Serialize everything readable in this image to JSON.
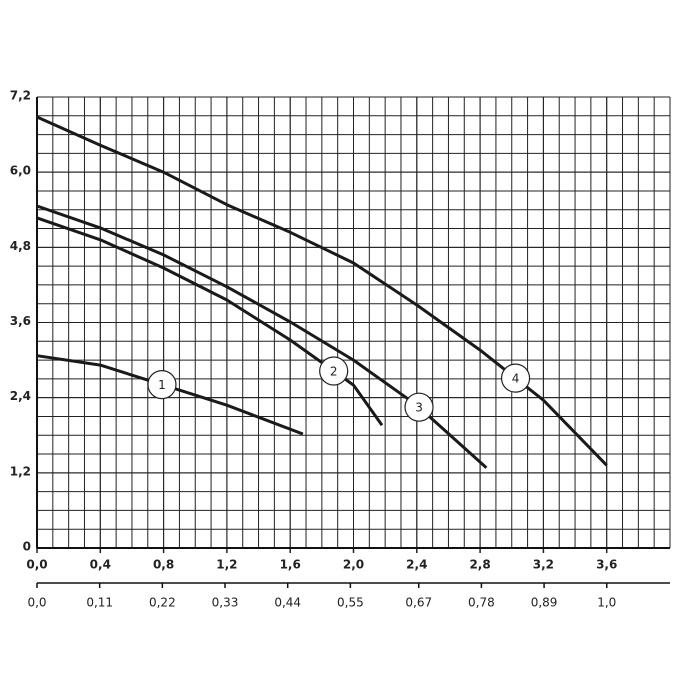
{
  "chart_data": {
    "type": "line",
    "xlim": [
      0,
      4.0
    ],
    "ylim": [
      0,
      7.2
    ],
    "x2lim": [
      0,
      1.111
    ],
    "xticks": [
      {
        "value": 0,
        "label": "0,0"
      },
      {
        "value": 0.4,
        "label": "0,4"
      },
      {
        "value": 0.8,
        "label": "0,8"
      },
      {
        "value": 1.2,
        "label": "1,2"
      },
      {
        "value": 1.6,
        "label": "1,6"
      },
      {
        "value": 2.0,
        "label": "2,0"
      },
      {
        "value": 2.4,
        "label": "2,4"
      },
      {
        "value": 2.8,
        "label": "2,8"
      },
      {
        "value": 3.2,
        "label": "3,2"
      },
      {
        "value": 3.6,
        "label": "3,6"
      }
    ],
    "x2ticks": [
      {
        "value": 0,
        "label": "0,0"
      },
      {
        "value": 0.11,
        "label": "0,11"
      },
      {
        "value": 0.22,
        "label": "0,22"
      },
      {
        "value": 0.33,
        "label": "0,33"
      },
      {
        "value": 0.44,
        "label": "0,44"
      },
      {
        "value": 0.55,
        "label": "0,55"
      },
      {
        "value": 0.67,
        "label": "0,67"
      },
      {
        "value": 0.78,
        "label": "0,78"
      },
      {
        "value": 0.89,
        "label": "0,89"
      },
      {
        "value": 1.0,
        "label": "1,0"
      }
    ],
    "yticks": [
      0,
      {
        "value": 1.2,
        "label": "1,2"
      },
      {
        "value": 2.4,
        "label": "2,4"
      },
      {
        "value": 3.6,
        "label": "3,6"
      },
      {
        "value": 4.8,
        "label": "4,8"
      },
      {
        "value": 6.0,
        "label": "6,0"
      },
      {
        "value": 7.2,
        "label": "7,2"
      }
    ],
    "grid": true,
    "series": [
      {
        "name": "1",
        "color": "#1a1a1a",
        "x": [
          0,
          0.4,
          0.8,
          1.2,
          1.68
        ],
        "values": [
          3.07,
          2.92,
          2.6,
          2.28,
          1.82
        ]
      },
      {
        "name": "2",
        "color": "#1a1a1a",
        "x": [
          0,
          0.4,
          0.8,
          1.2,
          1.6,
          2.0,
          2.18
        ],
        "values": [
          5.27,
          4.92,
          4.47,
          3.96,
          3.32,
          2.6,
          1.96
        ]
      },
      {
        "name": "3",
        "color": "#1a1a1a",
        "x": [
          0,
          0.4,
          0.8,
          1.2,
          1.6,
          2.0,
          2.4,
          2.84
        ],
        "values": [
          5.46,
          5.11,
          4.68,
          4.17,
          3.61,
          3.0,
          2.28,
          1.28
        ]
      },
      {
        "name": "4",
        "color": "#1a1a1a",
        "x": [
          0,
          0.4,
          0.8,
          1.2,
          1.6,
          2.0,
          2.4,
          2.8,
          3.2,
          3.6
        ],
        "values": [
          6.88,
          6.43,
          6.0,
          5.48,
          5.04,
          4.55,
          3.88,
          3.16,
          2.36,
          1.32
        ]
      }
    ]
  }
}
